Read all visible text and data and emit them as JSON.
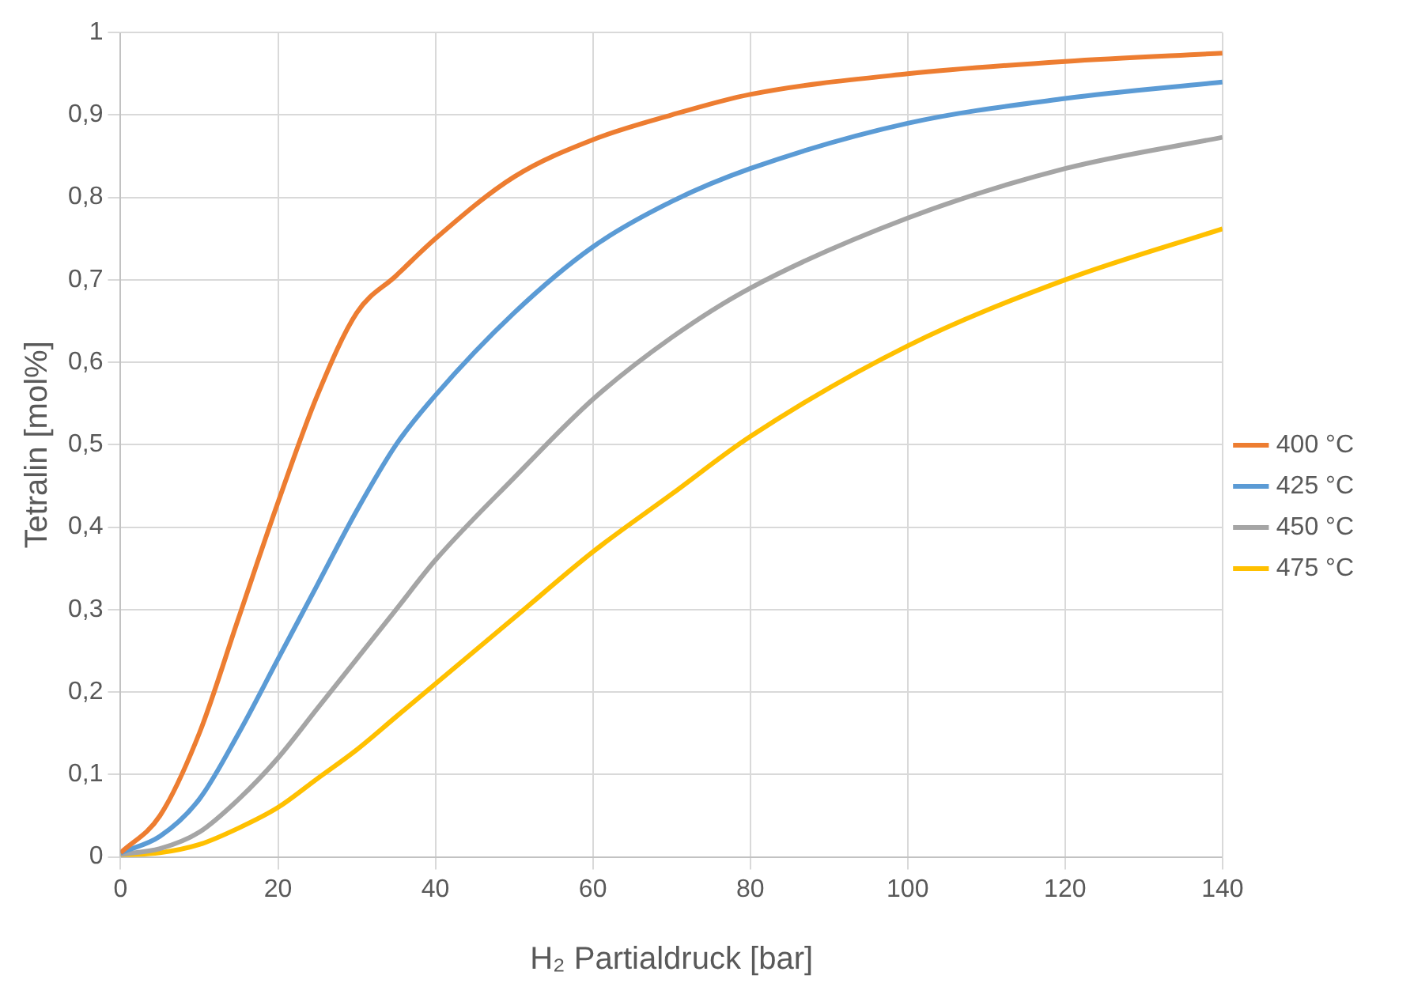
{
  "chart_data": {
    "type": "line",
    "xlabel": "H₂ Partialdruck [bar]",
    "ylabel": "Tetralin [mol%]",
    "x": [
      0,
      5,
      10,
      15,
      20,
      25,
      30,
      35,
      40,
      50,
      60,
      70,
      80,
      100,
      120,
      140
    ],
    "series": [
      {
        "name": "400 °C",
        "color": "#ed7d31",
        "values": [
          0.005,
          0.05,
          0.15,
          0.29,
          0.43,
          0.56,
          0.66,
          0.705,
          0.75,
          0.825,
          0.87,
          0.9,
          0.925,
          0.95,
          0.965,
          0.975
        ]
      },
      {
        "name": "425 °C",
        "color": "#5b9bd5",
        "values": [
          0.005,
          0.025,
          0.07,
          0.15,
          0.24,
          0.33,
          0.42,
          0.5,
          0.56,
          0.66,
          0.74,
          0.795,
          0.835,
          0.89,
          0.92,
          0.94
        ]
      },
      {
        "name": "450 °C",
        "color": "#a5a5a5",
        "values": [
          0.003,
          0.01,
          0.03,
          0.07,
          0.12,
          0.18,
          0.24,
          0.3,
          0.36,
          0.46,
          0.555,
          0.63,
          0.69,
          0.775,
          0.835,
          0.873
        ]
      },
      {
        "name": "475 °C",
        "color": "#ffc000",
        "values": [
          0.002,
          0.005,
          0.015,
          0.035,
          0.06,
          0.095,
          0.13,
          0.17,
          0.21,
          0.29,
          0.37,
          0.44,
          0.51,
          0.62,
          0.7,
          0.762
        ]
      }
    ],
    "xlim": [
      0,
      140
    ],
    "xticks": [
      0,
      20,
      40,
      60,
      80,
      100,
      120,
      140
    ],
    "ylim": [
      0,
      1
    ],
    "yticks": [
      0,
      {
        "value": 0.1,
        "label": "0,1"
      },
      {
        "value": 0.2,
        "label": "0,2"
      },
      {
        "value": 0.3,
        "label": "0,3"
      },
      {
        "value": 0.4,
        "label": "0,4"
      },
      {
        "value": 0.5,
        "label": "0,5"
      },
      {
        "value": 0.6,
        "label": "0,6"
      },
      {
        "value": 0.7,
        "label": "0,7"
      },
      {
        "value": 0.8,
        "label": "0,8"
      },
      {
        "value": 0.9,
        "label": "0,9"
      },
      1
    ],
    "grid": true,
    "legend": "right",
    "marker": "none",
    "line_style": "solid"
  }
}
